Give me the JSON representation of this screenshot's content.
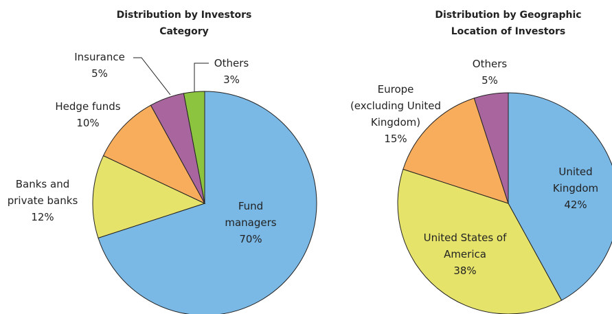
{
  "chart_data": [
    {
      "type": "pie",
      "title": "Distribution by Investors\nCategory",
      "categories": [
        "Fund\nmanagers",
        "Banks and\nprivate banks",
        "Hedge funds",
        "Insurance",
        "Others"
      ],
      "values": [
        70,
        12,
        10,
        5,
        3
      ],
      "value_labels": [
        "70%",
        "12%",
        "10%",
        "5%",
        "3%"
      ],
      "colors": [
        "#7ab8e6",
        "#e6e36b",
        "#f8ad5c",
        "#a8659e",
        "#8dc43f"
      ]
    },
    {
      "type": "pie",
      "title": "Distribution by Geographic\nLocation of Investors",
      "categories": [
        "United\nKingdom",
        "United States of\nAmerica",
        "Europe\n(excluding United\nKingdom)",
        "Others"
      ],
      "values": [
        42,
        38,
        15,
        5
      ],
      "value_labels": [
        "42%",
        "38%",
        "15%",
        "5%"
      ],
      "colors": [
        "#7ab8e6",
        "#e6e36b",
        "#f8ad5c",
        "#a8659e"
      ]
    }
  ]
}
